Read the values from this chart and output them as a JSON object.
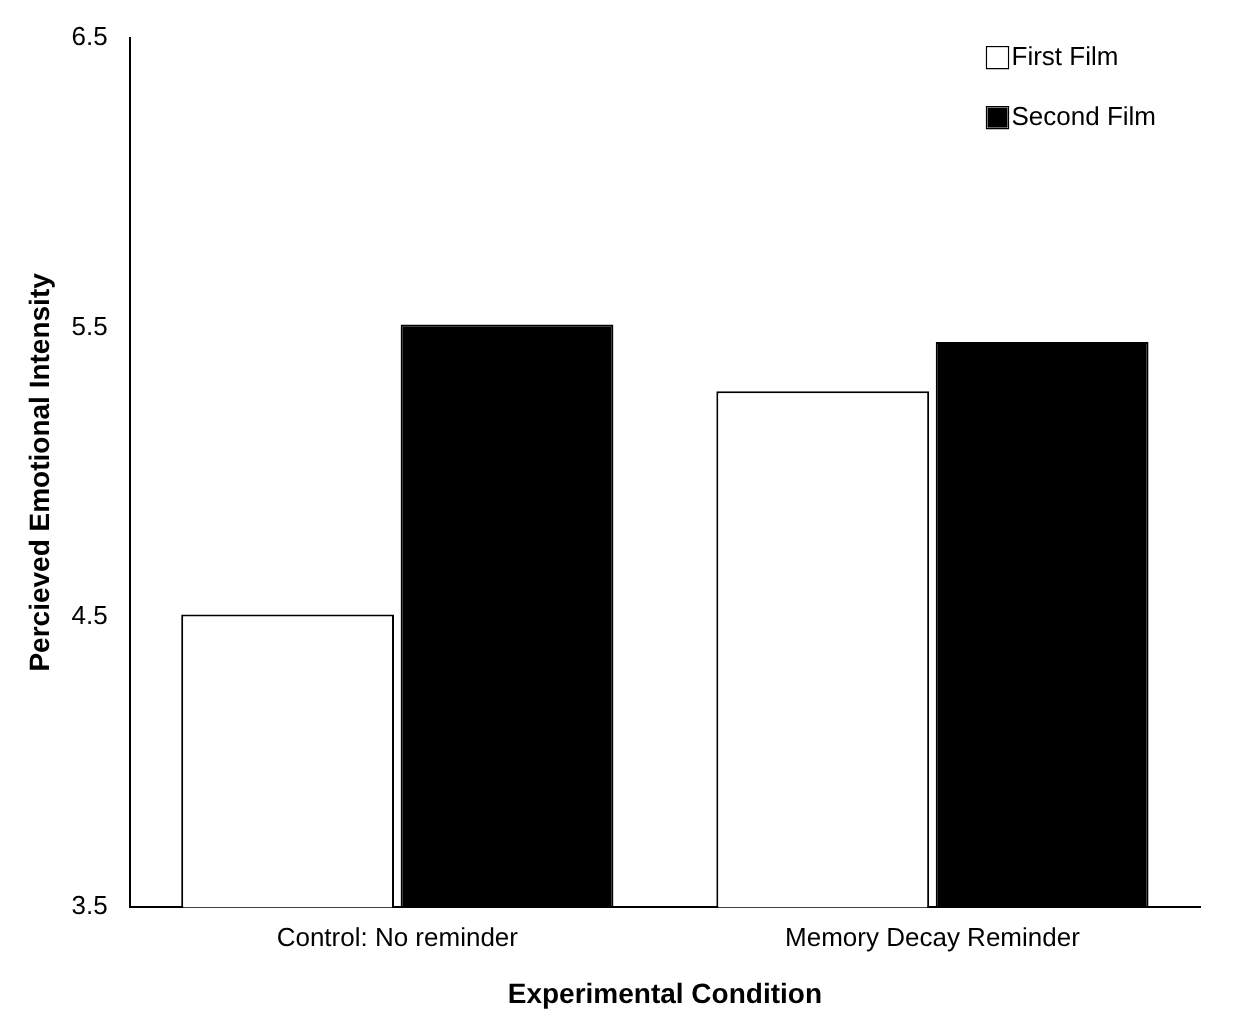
{
  "chart_data": {
    "type": "bar",
    "xlabel": "Experimental Condition",
    "ylabel": "Percieved Emotional Intensity",
    "categories": [
      "Control: No reminder",
      "Memory Decay Reminder"
    ],
    "series": [
      {
        "name": "First Film",
        "color": "#ffffff",
        "values": [
          4.51,
          5.28
        ]
      },
      {
        "name": "Second Film",
        "color": "#000000",
        "values": [
          5.51,
          5.45
        ]
      }
    ],
    "ylim": [
      3.5,
      6.5
    ],
    "yticks": [
      3.5,
      4.5,
      5.5,
      6.5
    ],
    "grid": false,
    "legend": "top right"
  }
}
